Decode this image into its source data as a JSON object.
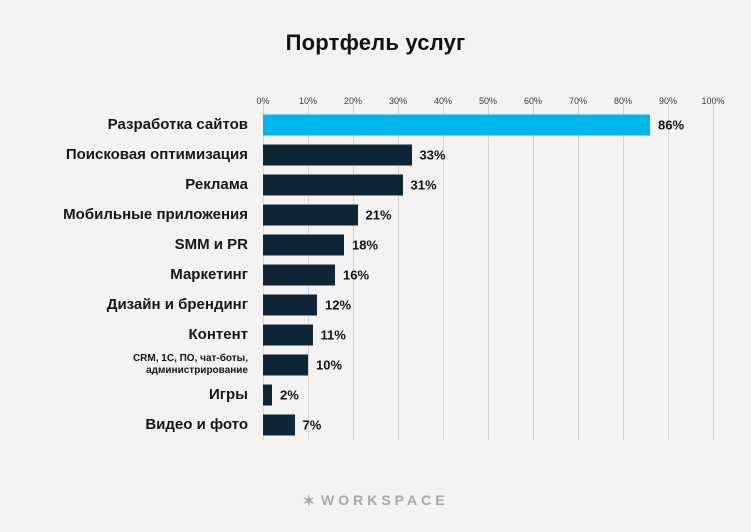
{
  "chart_data": {
    "type": "bar",
    "orientation": "horizontal",
    "title": "Портфель услуг",
    "categories": [
      "Разработка сайтов",
      "Поисковая оптимизация",
      "Реклама",
      "Мобильные приложения",
      "SMM и PR",
      "Маркетинг",
      "Дизайн и брендинг",
      "Контент",
      "CRM, 1С, ПО, чат-боты,\nадминистрирование",
      "Игры",
      "Видео и фото"
    ],
    "values": [
      86,
      33,
      31,
      21,
      18,
      16,
      12,
      11,
      10,
      2,
      7
    ],
    "value_labels": [
      "86%",
      "33%",
      "31%",
      "21%",
      "18%",
      "16%",
      "12%",
      "11%",
      "10%",
      "2%",
      "7%"
    ],
    "x_ticks": [
      "0%",
      "10%",
      "20%",
      "30%",
      "40%",
      "50%",
      "60%",
      "70%",
      "80%",
      "90%",
      "100%"
    ],
    "xlim": [
      0,
      100
    ],
    "grid": true,
    "legend": "none",
    "bar_color": "#0e2635",
    "highlight_color": "#00b7ec",
    "highlight_index": 0
  },
  "footer": {
    "brand": "WORKSPACE",
    "star_icon": "✶"
  }
}
